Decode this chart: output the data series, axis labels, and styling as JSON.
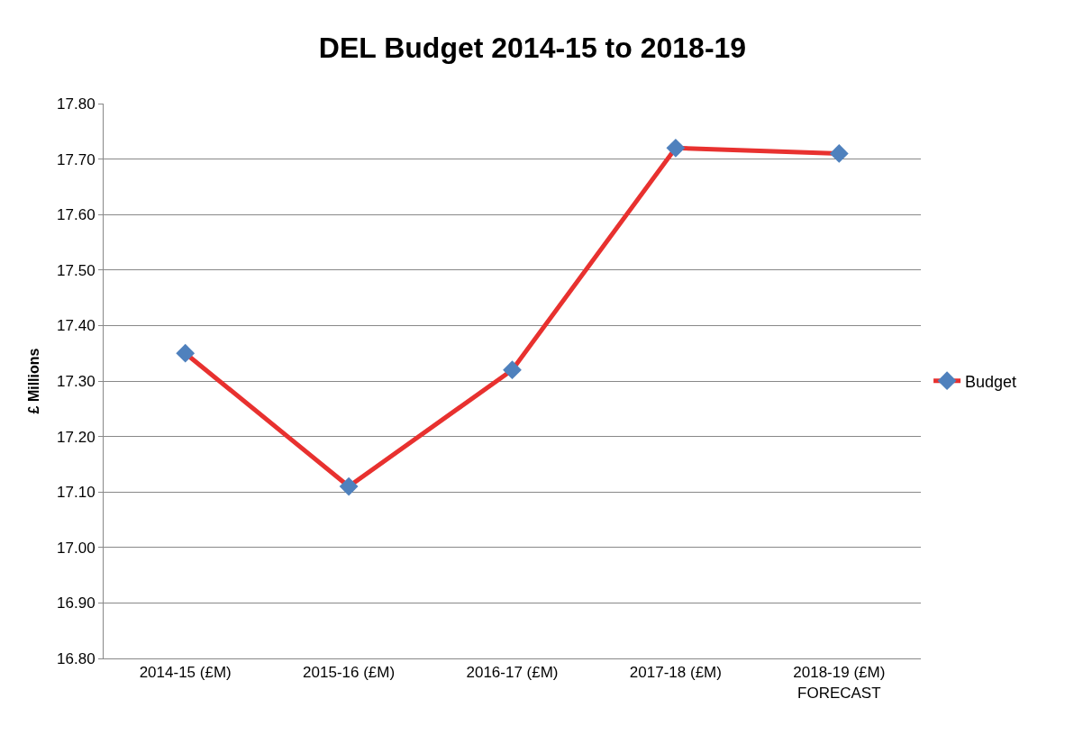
{
  "chart_data": {
    "type": "line",
    "title": "DEL Budget 2014-15 to 2018-19",
    "ylabel": "£ Millions",
    "categories": [
      "2014-15 (£M)",
      "2015-16 (£M)",
      "2016-17 (£M)",
      "2017-18 (£M)",
      "2018-19 (£M)\nFORECAST"
    ],
    "series": [
      {
        "name": "Budget",
        "color": "#e8312f",
        "colors": [
          "#4f81bd",
          "#4f81bd",
          "#4f81bd",
          "#4f81bd",
          "#4f81bd"
        ],
        "values": [
          17.35,
          17.11,
          17.32,
          17.72,
          17.71
        ]
      }
    ],
    "ylim": [
      16.8,
      17.8
    ],
    "yticks": [
      {
        "value": 16.8,
        "label": "16.80"
      },
      {
        "value": 16.9,
        "label": "16.90"
      },
      {
        "value": 17.0,
        "label": "17.00"
      },
      {
        "value": 17.1,
        "label": "17.10"
      },
      {
        "value": 17.2,
        "label": "17.20"
      },
      {
        "value": 17.3,
        "label": "17.30"
      },
      {
        "value": 17.4,
        "label": "17.40"
      },
      {
        "value": 17.5,
        "label": "17.50"
      },
      {
        "value": 17.6,
        "label": "17.60"
      },
      {
        "value": 17.7,
        "label": "17.70"
      },
      {
        "value": 17.8,
        "label": "17.80"
      }
    ],
    "grid": "y",
    "legend": "right",
    "marker": "diamond",
    "line_style": "solid"
  }
}
